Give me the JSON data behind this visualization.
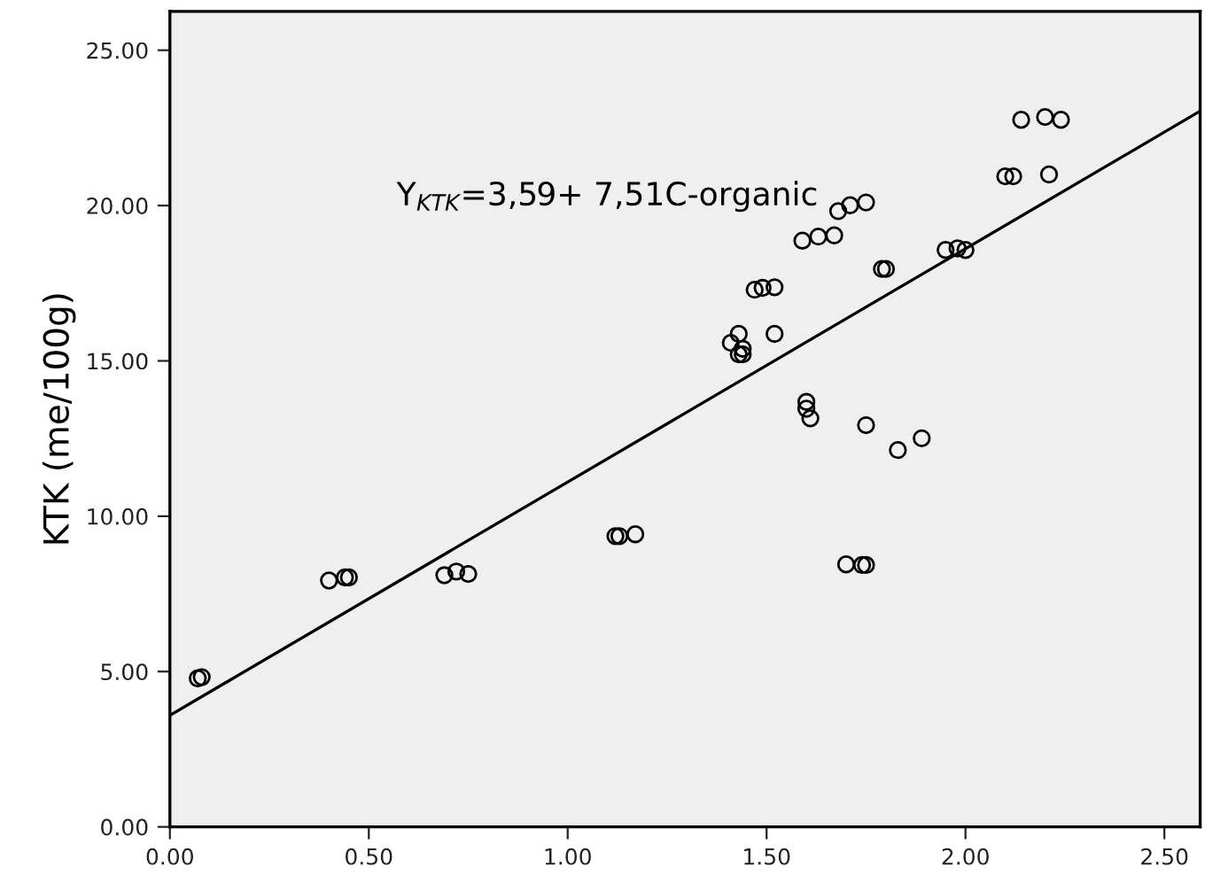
{
  "chart_data": {
    "type": "scatter",
    "ylabel": "KTK (me/100g)",
    "annotations": [
      "Y$_{KTK}$=3,59+ 7,51C-organic"
    ],
    "series": [
      {
        "color": "#000000",
        "marker": "circle",
        "x": [
          0.07,
          0.08,
          0.4,
          0.44,
          0.45,
          0.69,
          0.72,
          0.75,
          1.12,
          1.13,
          1.17,
          1.41,
          1.43,
          1.43,
          1.44,
          1.44,
          1.52,
          1.47,
          1.49,
          1.52,
          1.59,
          1.63,
          1.67,
          1.68,
          1.71,
          1.75,
          1.6,
          1.6,
          1.61,
          1.7,
          1.74,
          1.75,
          1.75,
          1.79,
          1.8,
          1.83,
          1.89,
          1.95,
          1.98,
          2.0,
          2.1,
          2.12,
          2.21,
          2.14,
          2.2,
          2.24
        ],
        "values": [
          4.78,
          4.82,
          7.93,
          8.03,
          8.03,
          8.1,
          8.22,
          8.14,
          9.36,
          9.36,
          9.42,
          15.58,
          15.87,
          15.21,
          15.21,
          15.39,
          15.87,
          17.29,
          17.35,
          17.37,
          18.87,
          19.0,
          19.04,
          19.82,
          20.01,
          20.1,
          13.68,
          13.46,
          13.15,
          8.45,
          8.43,
          8.43,
          12.93,
          17.96,
          17.96,
          12.13,
          12.51,
          18.57,
          18.62,
          18.57,
          20.94,
          20.94,
          21.0,
          22.76,
          22.85,
          22.76
        ]
      },
      {
        "type": "line",
        "color": "#000000",
        "marker": "none",
        "line_style": "solid",
        "x": [
          0,
          2.59
        ],
        "values": [
          3.59,
          23.04
        ]
      }
    ],
    "xlim": [
      0,
      2.59
    ],
    "ylim": [
      0,
      26.25
    ],
    "xticks": [
      {
        "value": 0,
        "label": "0.00"
      },
      {
        "value": 0.5,
        "label": "0.50"
      },
      {
        "value": 1,
        "label": "1.00"
      },
      {
        "value": 1.5,
        "label": "1.50"
      },
      {
        "value": 2,
        "label": "2.00"
      },
      {
        "value": 2.5,
        "label": "2.50"
      }
    ],
    "yticks": [
      {
        "value": 0,
        "label": "0.00"
      },
      {
        "value": 5,
        "label": "5.00"
      },
      {
        "value": 10,
        "label": "10.00"
      },
      {
        "value": 15,
        "label": "15.00"
      },
      {
        "value": 20,
        "label": "20.00"
      },
      {
        "value": 25,
        "label": "25.00"
      }
    ],
    "grid": false
  }
}
